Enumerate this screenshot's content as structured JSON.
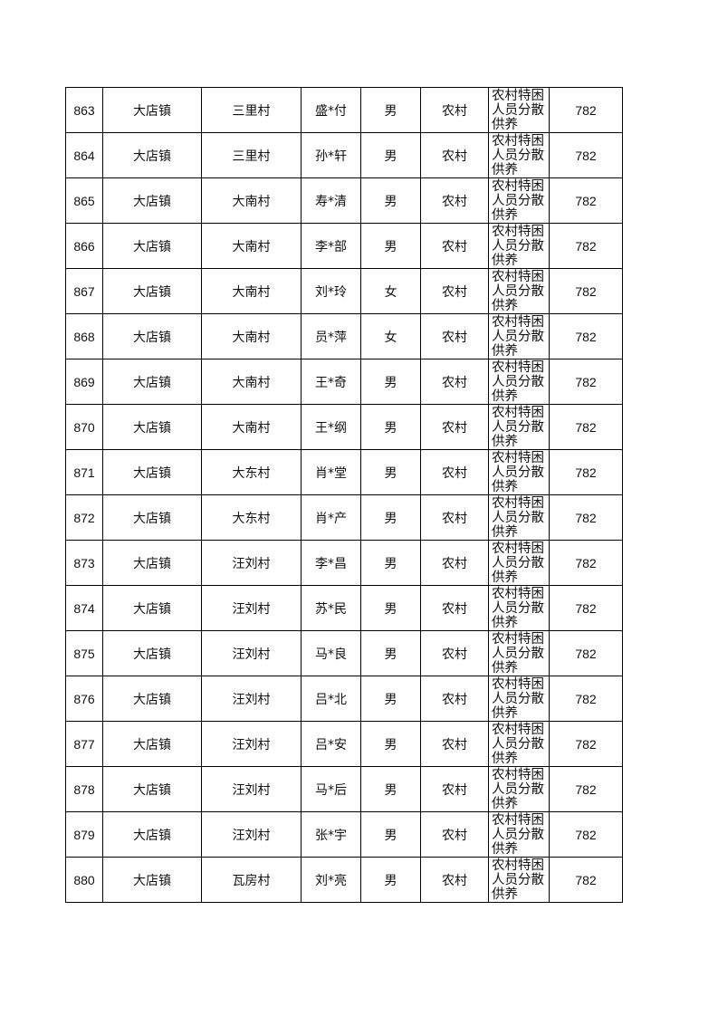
{
  "rows": [
    {
      "no": "863",
      "town": "大店镇",
      "village": "三里村",
      "name": "盛*付",
      "gender": "男",
      "type": "农村",
      "category": "农村特困人员分散供养",
      "amount": "782"
    },
    {
      "no": "864",
      "town": "大店镇",
      "village": "三里村",
      "name": "孙*轩",
      "gender": "男",
      "type": "农村",
      "category": "农村特困人员分散供养",
      "amount": "782"
    },
    {
      "no": "865",
      "town": "大店镇",
      "village": "大南村",
      "name": "寿*清",
      "gender": "男",
      "type": "农村",
      "category": "农村特困人员分散供养",
      "amount": "782"
    },
    {
      "no": "866",
      "town": "大店镇",
      "village": "大南村",
      "name": "李*部",
      "gender": "男",
      "type": "农村",
      "category": "农村特困人员分散供养",
      "amount": "782"
    },
    {
      "no": "867",
      "town": "大店镇",
      "village": "大南村",
      "name": "刘*玲",
      "gender": "女",
      "type": "农村",
      "category": "农村特困人员分散供养",
      "amount": "782"
    },
    {
      "no": "868",
      "town": "大店镇",
      "village": "大南村",
      "name": "员*萍",
      "gender": "女",
      "type": "农村",
      "category": "农村特困人员分散供养",
      "amount": "782"
    },
    {
      "no": "869",
      "town": "大店镇",
      "village": "大南村",
      "name": "王*奇",
      "gender": "男",
      "type": "农村",
      "category": "农村特困人员分散供养",
      "amount": "782"
    },
    {
      "no": "870",
      "town": "大店镇",
      "village": "大南村",
      "name": "王*纲",
      "gender": "男",
      "type": "农村",
      "category": "农村特困人员分散供养",
      "amount": "782"
    },
    {
      "no": "871",
      "town": "大店镇",
      "village": "大东村",
      "name": "肖*堂",
      "gender": "男",
      "type": "农村",
      "category": "农村特困人员分散供养",
      "amount": "782"
    },
    {
      "no": "872",
      "town": "大店镇",
      "village": "大东村",
      "name": "肖*产",
      "gender": "男",
      "type": "农村",
      "category": "农村特困人员分散供养",
      "amount": "782"
    },
    {
      "no": "873",
      "town": "大店镇",
      "village": "汪刘村",
      "name": "李*昌",
      "gender": "男",
      "type": "农村",
      "category": "农村特困人员分散供养",
      "amount": "782"
    },
    {
      "no": "874",
      "town": "大店镇",
      "village": "汪刘村",
      "name": "苏*民",
      "gender": "男",
      "type": "农村",
      "category": "农村特困人员分散供养",
      "amount": "782"
    },
    {
      "no": "875",
      "town": "大店镇",
      "village": "汪刘村",
      "name": "马*良",
      "gender": "男",
      "type": "农村",
      "category": "农村特困人员分散供养",
      "amount": "782"
    },
    {
      "no": "876",
      "town": "大店镇",
      "village": "汪刘村",
      "name": "吕*北",
      "gender": "男",
      "type": "农村",
      "category": "农村特困人员分散供养",
      "amount": "782"
    },
    {
      "no": "877",
      "town": "大店镇",
      "village": "汪刘村",
      "name": "吕*安",
      "gender": "男",
      "type": "农村",
      "category": "农村特困人员分散供养",
      "amount": "782"
    },
    {
      "no": "878",
      "town": "大店镇",
      "village": "汪刘村",
      "name": "马*后",
      "gender": "男",
      "type": "农村",
      "category": "农村特困人员分散供养",
      "amount": "782"
    },
    {
      "no": "879",
      "town": "大店镇",
      "village": "汪刘村",
      "name": "张*宇",
      "gender": "男",
      "type": "农村",
      "category": "农村特困人员分散供养",
      "amount": "782"
    },
    {
      "no": "880",
      "town": "大店镇",
      "village": "瓦房村",
      "name": "刘*亮",
      "gender": "男",
      "type": "农村",
      "category": "农村特困人员分散供养",
      "amount": "782"
    }
  ]
}
